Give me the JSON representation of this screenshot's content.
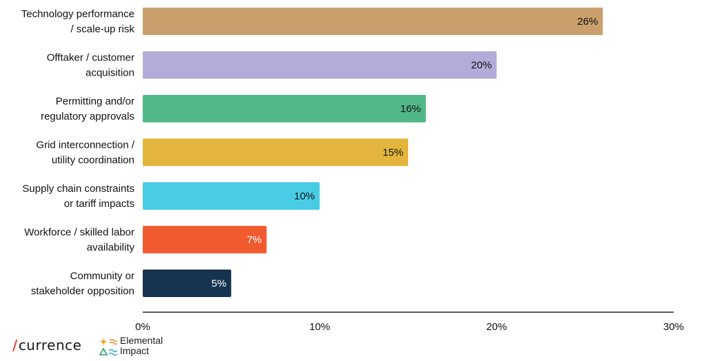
{
  "chart_data": {
    "type": "bar",
    "orientation": "horizontal",
    "categories": [
      [
        "Technology performance",
        "/ scale-up risk"
      ],
      [
        "Offtaker / customer",
        "acquisition"
      ],
      [
        "Permitting and/or",
        "regulatory approvals"
      ],
      [
        "Grid interconnection /",
        "utility coordination"
      ],
      [
        "Supply chain constraints",
        "or tariff impacts"
      ],
      [
        "Workforce / skilled labor",
        "availability"
      ],
      [
        "Community or",
        "stakeholder opposition"
      ]
    ],
    "values": [
      26,
      20,
      16,
      15,
      10,
      7,
      5
    ],
    "data_labels": [
      "26%",
      "20%",
      "16%",
      "15%",
      "10%",
      "7%",
      "5%"
    ],
    "colors": [
      "#c9a06b",
      "#b3acd9",
      "#52b788",
      "#e3b53c",
      "#48cce6",
      "#f05a2e",
      "#16344f"
    ],
    "label_colors": [
      "#111111",
      "#111111",
      "#111111",
      "#111111",
      "#111111",
      "#ffffff",
      "#ffffff"
    ],
    "xlim": [
      0,
      30
    ],
    "xticks": [
      0,
      10,
      20,
      30
    ],
    "xtick_labels": [
      "0%",
      "10%",
      "20%",
      "30%"
    ],
    "grid": false,
    "legend": "none",
    "title": "",
    "xlabel": "",
    "ylabel": ""
  },
  "logos": {
    "currence": {
      "text": "currence",
      "accent_color": "#e8473a"
    },
    "elemental": {
      "line1": "Elemental",
      "line2": "Impact"
    }
  }
}
